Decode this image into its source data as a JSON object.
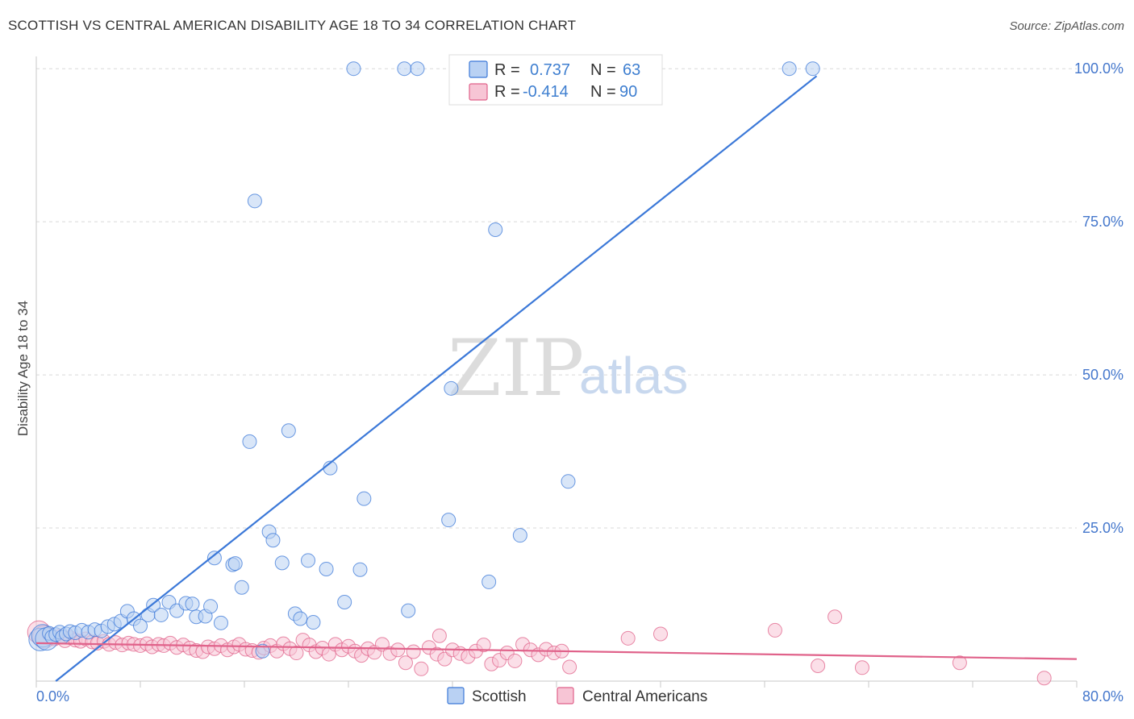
{
  "title": "SCOTTISH VS CENTRAL AMERICAN DISABILITY AGE 18 TO 34 CORRELATION CHART",
  "source": "Source: ZipAtlas.com",
  "watermark": {
    "zip": "ZIP",
    "atlas": "atlas"
  },
  "legend": {
    "r_label": "R =",
    "n_label": "N =",
    "rows": [
      {
        "r": "0.737",
        "n": "63"
      },
      {
        "r": "-0.414",
        "n": "90"
      }
    ]
  },
  "chart_data": {
    "type": "scatter",
    "title": "SCOTTISH VS CENTRAL AMERICAN DISABILITY AGE 18 TO 34 CORRELATION CHART",
    "xlabel": "",
    "ylabel": "Disability Age 18 to 34",
    "xlim": [
      0,
      80
    ],
    "ylim": [
      0,
      102
    ],
    "x_tick_labels": [
      "0.0%",
      "80.0%"
    ],
    "y_ticks": [
      25,
      50,
      75,
      100
    ],
    "y_tick_labels": [
      "25.0%",
      "50.0%",
      "75.0%",
      "100.0%"
    ],
    "grid": true,
    "series": [
      {
        "name": "Scottish",
        "color": "#3b78d8",
        "fill": "#b9d1f3",
        "trend": {
          "x": [
            1.5,
            60.0
          ],
          "y": [
            0.0,
            98.8
          ]
        },
        "points": [
          [
            0.3,
            6.8
          ],
          [
            0.5,
            7.4
          ],
          [
            0.8,
            6.9
          ],
          [
            1.0,
            7.8
          ],
          [
            1.2,
            7.2
          ],
          [
            1.5,
            7.6
          ],
          [
            1.8,
            8.0
          ],
          [
            2.0,
            7.2
          ],
          [
            2.3,
            7.7
          ],
          [
            2.6,
            8.1
          ],
          [
            3.0,
            7.9
          ],
          [
            3.5,
            8.3
          ],
          [
            4.0,
            8.0
          ],
          [
            4.5,
            8.4
          ],
          [
            5.0,
            8.2
          ],
          [
            5.5,
            8.9
          ],
          [
            6.0,
            9.3
          ],
          [
            6.5,
            9.8
          ],
          [
            7.0,
            11.4
          ],
          [
            7.5,
            10.2
          ],
          [
            8.0,
            9.0
          ],
          [
            8.6,
            10.8
          ],
          [
            9.0,
            12.4
          ],
          [
            9.6,
            10.8
          ],
          [
            10.2,
            12.9
          ],
          [
            10.8,
            11.5
          ],
          [
            11.5,
            12.7
          ],
          [
            12.0,
            12.6
          ],
          [
            12.3,
            10.5
          ],
          [
            13.0,
            10.6
          ],
          [
            13.4,
            12.2
          ],
          [
            14.2,
            9.5
          ],
          [
            13.7,
            20.1
          ],
          [
            15.1,
            19.0
          ],
          [
            15.3,
            19.2
          ],
          [
            15.8,
            15.3
          ],
          [
            16.4,
            39.1
          ],
          [
            16.8,
            78.4
          ],
          [
            17.4,
            4.9
          ],
          [
            17.9,
            24.4
          ],
          [
            18.2,
            23.0
          ],
          [
            18.9,
            19.3
          ],
          [
            19.4,
            40.9
          ],
          [
            19.9,
            11.0
          ],
          [
            20.3,
            10.2
          ],
          [
            20.9,
            19.7
          ],
          [
            21.3,
            9.6
          ],
          [
            22.3,
            18.3
          ],
          [
            22.6,
            34.8
          ],
          [
            23.7,
            12.9
          ],
          [
            24.9,
            18.2
          ],
          [
            25.2,
            29.8
          ],
          [
            24.4,
            100.0
          ],
          [
            28.3,
            100.0
          ],
          [
            29.3,
            100.0
          ],
          [
            28.6,
            11.5
          ],
          [
            31.7,
            26.3
          ],
          [
            31.9,
            47.8
          ],
          [
            34.8,
            16.2
          ],
          [
            35.3,
            73.7
          ],
          [
            37.2,
            23.8
          ],
          [
            40.9,
            32.6
          ],
          [
            42.6,
            100.0
          ],
          [
            57.9,
            100.0
          ],
          [
            59.7,
            100.0
          ]
        ]
      },
      {
        "name": "Central Americans",
        "color": "#e0628a",
        "fill": "#f7c5d5",
        "trend": {
          "x": [
            0.0,
            80.0
          ],
          "y": [
            6.2,
            3.6
          ]
        },
        "points": [
          [
            0.2,
            8.0
          ],
          [
            0.6,
            7.2
          ],
          [
            1.0,
            7.6
          ],
          [
            1.4,
            6.9
          ],
          [
            1.8,
            7.3
          ],
          [
            2.2,
            6.6
          ],
          [
            2.6,
            7.1
          ],
          [
            3.0,
            6.7
          ],
          [
            3.4,
            6.5
          ],
          [
            3.8,
            6.9
          ],
          [
            4.3,
            6.4
          ],
          [
            4.7,
            6.2
          ],
          [
            5.2,
            6.5
          ],
          [
            5.6,
            6.0
          ],
          [
            6.1,
            6.3
          ],
          [
            6.6,
            5.9
          ],
          [
            7.1,
            6.2
          ],
          [
            7.5,
            6.0
          ],
          [
            8.0,
            5.8
          ],
          [
            8.5,
            6.1
          ],
          [
            8.9,
            5.6
          ],
          [
            9.4,
            6.0
          ],
          [
            9.8,
            5.8
          ],
          [
            10.3,
            6.2
          ],
          [
            10.8,
            5.5
          ],
          [
            11.3,
            5.9
          ],
          [
            11.8,
            5.4
          ],
          [
            12.3,
            5.0
          ],
          [
            12.8,
            4.8
          ],
          [
            13.2,
            5.6
          ],
          [
            13.7,
            5.3
          ],
          [
            14.2,
            5.8
          ],
          [
            14.7,
            5.1
          ],
          [
            15.2,
            5.6
          ],
          [
            15.6,
            6.0
          ],
          [
            16.1,
            5.2
          ],
          [
            16.6,
            5.0
          ],
          [
            17.1,
            4.7
          ],
          [
            17.5,
            5.4
          ],
          [
            18.0,
            5.8
          ],
          [
            18.5,
            4.9
          ],
          [
            19.0,
            6.1
          ],
          [
            19.5,
            5.3
          ],
          [
            20.0,
            4.6
          ],
          [
            20.5,
            6.7
          ],
          [
            21.0,
            5.9
          ],
          [
            21.5,
            4.8
          ],
          [
            22.0,
            5.4
          ],
          [
            22.5,
            4.4
          ],
          [
            23.0,
            6.0
          ],
          [
            23.5,
            5.1
          ],
          [
            24.0,
            5.7
          ],
          [
            24.5,
            4.9
          ],
          [
            25.0,
            4.2
          ],
          [
            25.5,
            5.3
          ],
          [
            26.0,
            4.7
          ],
          [
            26.6,
            6.0
          ],
          [
            27.2,
            4.5
          ],
          [
            27.8,
            5.1
          ],
          [
            28.4,
            3.0
          ],
          [
            29.0,
            4.8
          ],
          [
            29.6,
            2.0
          ],
          [
            30.2,
            5.5
          ],
          [
            30.8,
            4.4
          ],
          [
            31.4,
            3.6
          ],
          [
            32.0,
            5.1
          ],
          [
            32.6,
            4.5
          ],
          [
            33.2,
            4.0
          ],
          [
            33.8,
            4.9
          ],
          [
            34.4,
            5.9
          ],
          [
            35.0,
            2.8
          ],
          [
            35.6,
            3.4
          ],
          [
            36.2,
            4.6
          ],
          [
            36.8,
            3.3
          ],
          [
            37.4,
            6.0
          ],
          [
            38.0,
            5.1
          ],
          [
            38.6,
            4.3
          ],
          [
            39.2,
            5.2
          ],
          [
            39.8,
            4.6
          ],
          [
            40.4,
            4.9
          ],
          [
            41.0,
            2.3
          ],
          [
            31.0,
            7.4
          ],
          [
            45.5,
            7.0
          ],
          [
            48.0,
            7.7
          ],
          [
            56.8,
            8.3
          ],
          [
            61.4,
            10.5
          ],
          [
            60.1,
            2.5
          ],
          [
            63.5,
            2.2
          ],
          [
            71.0,
            3.0
          ],
          [
            77.5,
            0.5
          ]
        ]
      }
    ]
  }
}
